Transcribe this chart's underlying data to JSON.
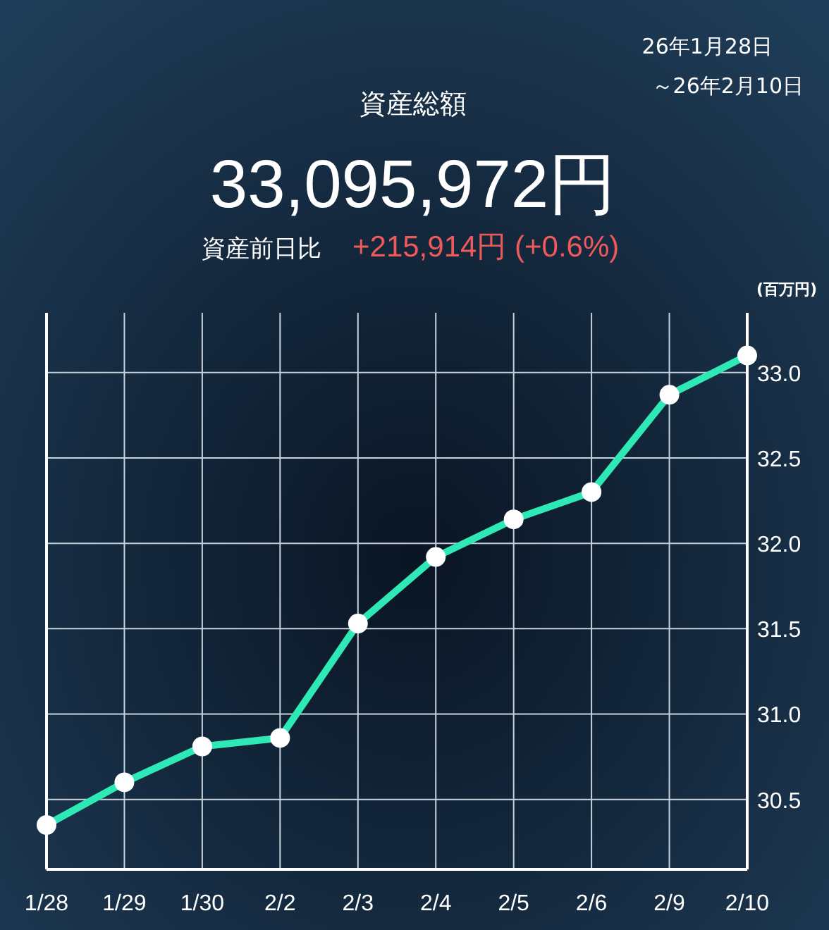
{
  "chart_data": {
    "type": "line",
    "title": "資産総額",
    "annotations": [
      "33,095,972円",
      "資産前日比",
      "+215,914円 (+0.6%)",
      "26年1月28日",
      "～26年2月10日"
    ],
    "ylabel": "(百万円)",
    "categories": [
      "1/28",
      "1/29",
      "1/30",
      "2/2",
      "2/3",
      "2/4",
      "2/5",
      "2/6",
      "2/9",
      "2/10"
    ],
    "series": [
      {
        "color": "#2ee8b6",
        "values": [
          30.35,
          30.6,
          30.81,
          30.86,
          31.53,
          31.92,
          32.14,
          32.3,
          32.87,
          33.1
        ]
      }
    ],
    "ylim": [
      30.09,
      33.35
    ],
    "yticks": [
      30.5,
      {
        "value": 31,
        "label": "31.0"
      },
      31.5,
      {
        "value": 32,
        "label": "32.0"
      },
      32.5,
      {
        "value": 33,
        "label": "33.0"
      }
    ],
    "grid": true,
    "marker": "circle",
    "line_style": "solid"
  }
}
